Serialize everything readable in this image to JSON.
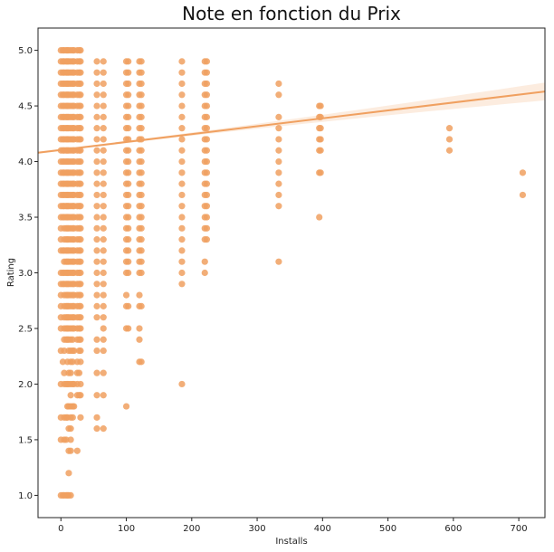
{
  "chart_data": {
    "type": "scatter",
    "title": "Note en fonction du Prix",
    "xlabel": "Installs",
    "ylabel": "Rating",
    "xlim": [
      -35,
      740
    ],
    "ylim": [
      0.8,
      5.2
    ],
    "xticks": [
      "0",
      "100",
      "200",
      "300",
      "400",
      "500",
      "600",
      "700"
    ],
    "yticks": [
      "1.0",
      "1.5",
      "2.0",
      "2.5",
      "3.0",
      "3.5",
      "4.0",
      "4.5",
      "5.0"
    ],
    "grid": false,
    "legend": "none",
    "color": "#f0a060",
    "regression": {
      "x": [
        -35,
        740
      ],
      "y": [
        4.08,
        4.63
      ]
    },
    "columns": [
      {
        "x": 0,
        "ratings": [
          1.0,
          1.5,
          1.7,
          2.0,
          2.3,
          2.5,
          2.6,
          2.7,
          2.8,
          2.9,
          3.0,
          3.2,
          3.3,
          3.4,
          3.5,
          3.6,
          3.7,
          3.8,
          3.9,
          4.0,
          4.1,
          4.2,
          4.3,
          4.4,
          4.5,
          4.6,
          4.7,
          4.8,
          4.9,
          5.0
        ]
      },
      {
        "x": 3,
        "ratings": [
          1.0,
          2.2,
          2.9,
          3.0,
          3.2,
          3.5,
          3.6,
          3.7,
          3.8,
          3.9,
          4.0,
          4.1,
          4.2,
          4.3,
          4.4,
          4.5,
          4.6,
          4.7,
          4.8,
          4.9,
          5.0
        ]
      },
      {
        "x": 5,
        "ratings": [
          1.0,
          1.5,
          1.7,
          2.0,
          2.1,
          2.3,
          2.4,
          2.5,
          2.6,
          2.7,
          2.8,
          2.9,
          3.0,
          3.1,
          3.2,
          3.3,
          3.4,
          3.5,
          3.6,
          3.7,
          3.8,
          3.9,
          4.0,
          4.1,
          4.2,
          4.3,
          4.4,
          4.5,
          4.6,
          4.7,
          4.8,
          4.9,
          5.0
        ]
      },
      {
        "x": 8,
        "ratings": [
          1.0,
          1.5,
          1.7,
          2.0,
          2.4,
          2.5,
          2.6,
          2.7,
          2.8,
          2.9,
          3.0,
          3.1,
          3.2,
          3.3,
          3.4,
          3.5,
          3.6,
          3.7,
          3.8,
          3.9,
          4.0,
          4.1,
          4.2,
          4.3,
          4.4,
          4.5,
          4.6,
          4.7,
          4.8,
          4.9,
          5.0
        ]
      },
      {
        "x": 10,
        "ratings": [
          1.0,
          1.7,
          1.8,
          2.0,
          2.2,
          2.4,
          2.5,
          2.6,
          2.7,
          2.8,
          2.9,
          3.0,
          3.1,
          3.2,
          3.3,
          3.4,
          3.5,
          3.6,
          3.7,
          3.8,
          3.9,
          4.0,
          4.1,
          4.2,
          4.3,
          4.4,
          4.5,
          4.6,
          4.7,
          4.8,
          4.9,
          5.0
        ]
      },
      {
        "x": 12,
        "ratings": [
          1.0,
          1.2,
          1.4,
          1.6,
          1.8,
          2.0,
          2.1,
          2.3,
          2.4,
          2.5,
          2.6,
          2.7,
          2.8,
          2.9,
          3.0,
          3.1,
          3.2,
          3.3,
          3.4,
          3.5,
          3.6,
          3.7,
          3.8,
          3.9,
          4.0,
          4.1,
          4.2,
          4.3,
          4.4,
          4.5,
          4.6,
          4.7,
          4.8,
          4.9,
          5.0
        ]
      },
      {
        "x": 15,
        "ratings": [
          1.0,
          1.4,
          1.5,
          1.6,
          1.7,
          1.8,
          1.9,
          2.0,
          2.1,
          2.2,
          2.3,
          2.4,
          2.5,
          2.6,
          2.7,
          2.8,
          2.9,
          3.0,
          3.1,
          3.2,
          3.3,
          3.4,
          3.5,
          3.6,
          3.7,
          3.8,
          3.9,
          4.0,
          4.1,
          4.2,
          4.3,
          4.4,
          4.5,
          4.6,
          4.7,
          4.8,
          4.9,
          5.0
        ]
      },
      {
        "x": 18,
        "ratings": [
          1.7,
          1.8,
          2.0,
          2.2,
          2.3,
          2.4,
          2.5,
          2.6,
          2.7,
          2.8,
          2.9,
          3.0,
          3.1,
          3.2,
          3.3,
          3.4,
          3.5,
          3.6,
          3.7,
          3.8,
          3.9,
          4.0,
          4.1,
          4.2,
          4.3,
          4.4,
          4.5,
          4.6,
          4.7,
          4.8,
          4.9,
          5.0
        ]
      },
      {
        "x": 20,
        "ratings": [
          1.8,
          2.0,
          2.3,
          2.5,
          2.6,
          2.7,
          2.8,
          2.9,
          3.0,
          3.1,
          3.2,
          3.3,
          3.4,
          3.5,
          3.6,
          3.7,
          3.8,
          3.9,
          4.0,
          4.1,
          4.2,
          4.3,
          4.4,
          4.5,
          4.6,
          4.7,
          4.8,
          4.9,
          5.0
        ]
      },
      {
        "x": 25,
        "ratings": [
          1.4,
          1.9,
          2.0,
          2.1,
          2.2,
          2.4,
          2.5,
          2.6,
          2.7,
          2.8,
          2.9,
          3.0,
          3.1,
          3.2,
          3.3,
          3.4,
          3.5,
          3.6,
          3.7,
          3.8,
          3.9,
          4.0,
          4.1,
          4.2,
          4.3,
          4.4,
          4.5,
          4.6,
          4.7,
          4.8,
          4.9,
          5.0
        ]
      },
      {
        "x": 28,
        "ratings": [
          1.9,
          2.1,
          2.3,
          2.4,
          2.5,
          2.6,
          2.7,
          2.8,
          2.9,
          3.0,
          3.1,
          3.2,
          3.3,
          3.4,
          3.5,
          3.6,
          3.7,
          3.8,
          3.9,
          4.0,
          4.1,
          4.2,
          4.3,
          4.4,
          4.5,
          4.6,
          4.7,
          4.8,
          4.9,
          5.0
        ]
      },
      {
        "x": 30,
        "ratings": [
          1.7,
          1.9,
          2.0,
          2.2,
          2.3,
          2.4,
          2.5,
          2.6,
          2.7,
          2.8,
          2.9,
          3.0,
          3.1,
          3.2,
          3.3,
          3.4,
          3.5,
          3.6,
          3.7,
          3.8,
          3.9,
          4.0,
          4.1,
          4.2,
          4.3,
          4.4,
          4.5,
          4.6,
          4.7,
          4.8,
          4.9,
          5.0
        ]
      },
      {
        "x": 55,
        "ratings": [
          1.6,
          1.7,
          1.9,
          2.1,
          2.3,
          2.4,
          2.6,
          2.7,
          2.8,
          2.9,
          3.0,
          3.1,
          3.2,
          3.3,
          3.4,
          3.5,
          3.6,
          3.7,
          3.8,
          3.9,
          4.0,
          4.1,
          4.2,
          4.3,
          4.4,
          4.5,
          4.6,
          4.7,
          4.8,
          4.9
        ]
      },
      {
        "x": 65,
        "ratings": [
          1.6,
          1.9,
          2.1,
          2.3,
          2.4,
          2.5,
          2.6,
          2.7,
          2.8,
          2.9,
          3.0,
          3.1,
          3.2,
          3.3,
          3.4,
          3.5,
          3.6,
          3.7,
          3.8,
          3.9,
          4.0,
          4.1,
          4.2,
          4.3,
          4.4,
          4.5,
          4.6,
          4.7,
          4.8,
          4.9
        ]
      },
      {
        "x": 100,
        "ratings": [
          1.8,
          2.5,
          2.7,
          2.8,
          3.0,
          3.1,
          3.2,
          3.3,
          3.4,
          3.5,
          3.6,
          3.7,
          3.8,
          3.9,
          4.0,
          4.1,
          4.2,
          4.3,
          4.4,
          4.5,
          4.6,
          4.7,
          4.8,
          4.9
        ]
      },
      {
        "x": 103,
        "ratings": [
          2.5,
          2.7,
          3.0,
          3.1,
          3.2,
          3.3,
          3.4,
          3.5,
          3.6,
          3.7,
          3.8,
          3.9,
          4.0,
          4.1,
          4.2,
          4.3,
          4.4,
          4.5,
          4.6,
          4.7,
          4.8,
          4.9
        ]
      },
      {
        "x": 120,
        "ratings": [
          2.2,
          2.4,
          2.5,
          2.7,
          2.8,
          3.0,
          3.1,
          3.2,
          3.3,
          3.4,
          3.5,
          3.6,
          3.7,
          3.8,
          3.9,
          4.0,
          4.1,
          4.2,
          4.3,
          4.4,
          4.5,
          4.6,
          4.7,
          4.8,
          4.9
        ]
      },
      {
        "x": 123,
        "ratings": [
          2.2,
          2.7,
          3.0,
          3.1,
          3.2,
          3.3,
          3.4,
          3.5,
          3.6,
          3.7,
          3.8,
          3.9,
          4.0,
          4.1,
          4.2,
          4.3,
          4.4,
          4.5,
          4.6,
          4.7,
          4.8,
          4.9
        ]
      },
      {
        "x": 185,
        "ratings": [
          2.0,
          2.9,
          3.0,
          3.1,
          3.2,
          3.3,
          3.4,
          3.5,
          3.6,
          3.7,
          3.8,
          3.9,
          4.0,
          4.1,
          4.2,
          4.3,
          4.4,
          4.5,
          4.6,
          4.7,
          4.8,
          4.9
        ]
      },
      {
        "x": 220,
        "ratings": [
          3.0,
          3.1,
          3.3,
          3.4,
          3.5,
          3.6,
          3.7,
          3.8,
          3.9,
          4.0,
          4.1,
          4.2,
          4.3,
          4.4,
          4.5,
          4.6,
          4.7,
          4.8,
          4.9
        ]
      },
      {
        "x": 223,
        "ratings": [
          3.3,
          3.4,
          3.5,
          3.6,
          3.7,
          3.8,
          3.9,
          4.0,
          4.1,
          4.2,
          4.3,
          4.4,
          4.5,
          4.6,
          4.7,
          4.8,
          4.9
        ]
      },
      {
        "x": 333,
        "ratings": [
          3.1,
          3.6,
          3.7,
          3.8,
          3.9,
          4.0,
          4.1,
          4.2,
          4.3,
          4.4,
          4.6,
          4.7
        ]
      },
      {
        "x": 395,
        "ratings": [
          3.5,
          3.9,
          4.1,
          4.2,
          4.3,
          4.4,
          4.5
        ]
      },
      {
        "x": 397,
        "ratings": [
          3.9,
          4.1,
          4.2,
          4.3,
          4.4,
          4.5
        ]
      },
      {
        "x": 594,
        "ratings": [
          4.1,
          4.2,
          4.3
        ]
      },
      {
        "x": 706,
        "ratings": [
          3.7,
          3.9
        ]
      }
    ]
  }
}
